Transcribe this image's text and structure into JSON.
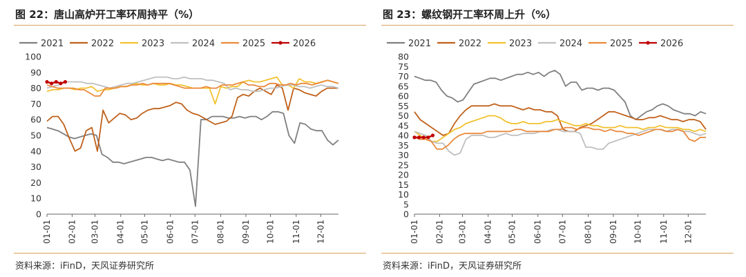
{
  "charts": [
    {
      "id": "c22",
      "figure_title": "图 22：唐山高炉开工率环周持平（%）",
      "source": "资料来源：iFinD，天风证券研究所",
      "chart_data": {
        "type": "line",
        "title": "唐山高炉开工率环周持平（%）",
        "xlabel": "",
        "ylabel": "",
        "ylim": [
          0,
          100
        ],
        "yticks": [
          0,
          10,
          20,
          30,
          40,
          50,
          60,
          70,
          80,
          90,
          100
        ],
        "xlim": [
          1,
          52
        ],
        "xticks": [
          {
            "label": "01-01",
            "week": 1
          },
          {
            "label": "02-01",
            "week": 5.4
          },
          {
            "label": "03-01",
            "week": 9.4
          },
          {
            "label": "04-01",
            "week": 13.9
          },
          {
            "label": "05-01",
            "week": 18.1
          },
          {
            "label": "06-01",
            "week": 22.6
          },
          {
            "label": "07-01",
            "week": 26.9
          },
          {
            "label": "08-01",
            "week": 31.4
          },
          {
            "label": "09-01",
            "week": 35.8
          },
          {
            "label": "10-01",
            "week": 40.1
          },
          {
            "label": "11-01",
            "week": 44.6
          },
          {
            "label": "12-01",
            "week": 48.9
          }
        ],
        "series": [
          {
            "name": "2021",
            "color": "#7f7f7f",
            "values": [
              55,
              54,
              53,
              51,
              49,
              48,
              49,
              50,
              51,
              50,
              38,
              36,
              33,
              33,
              32,
              33,
              34,
              35,
              36,
              36,
              35,
              34,
              35,
              34,
              33,
              33,
              28,
              5,
              60,
              60,
              62,
              62,
              62,
              61,
              61,
              62,
              61,
              62,
              62,
              60,
              62,
              65,
              65,
              64,
              50,
              45,
              58,
              57,
              54,
              53,
              53,
              47,
              44,
              47
            ]
          },
          {
            "name": "2022",
            "color": "#c0601a",
            "values": [
              59,
              62,
              62,
              57,
              48,
              40,
              42,
              53,
              55,
              40,
              66,
              58,
              61,
              64,
              63,
              60,
              61,
              64,
              66,
              67,
              67,
              68,
              69,
              71,
              70,
              66,
              64,
              63,
              61,
              59,
              57,
              58,
              59,
              62,
              74,
              76,
              75,
              78,
              80,
              78,
              76,
              82,
              80,
              66,
              80,
              79,
              77,
              76,
              75,
              78,
              80,
              80,
              80
            ]
          },
          {
            "name": "2023",
            "color": "#f2c12e",
            "values": [
              78,
              79,
              79,
              80,
              80,
              79,
              80,
              80,
              81,
              78,
              79,
              79,
              80,
              81,
              81,
              82,
              83,
              82,
              82,
              83,
              82,
              82,
              83,
              82,
              82,
              81,
              80,
              80,
              80,
              80,
              70,
              81,
              80,
              81,
              81,
              84,
              85,
              84,
              84,
              85,
              86,
              87,
              82,
              82,
              80,
              86,
              84,
              84,
              83,
              84,
              85,
              84,
              83
            ]
          },
          {
            "name": "2024",
            "color": "#bfbfbf",
            "values": [
              80,
              81,
              82,
              84,
              84,
              84,
              84,
              83,
              83,
              82,
              81,
              80,
              81,
              82,
              83,
              83,
              84,
              85,
              86,
              87,
              87,
              87,
              86,
              86,
              87,
              86,
              86,
              86,
              85,
              85,
              84,
              83,
              79,
              80,
              79,
              79,
              78,
              78,
              79,
              80,
              80,
              81,
              82,
              82,
              81,
              81,
              80,
              81,
              82,
              81,
              81,
              80
            ]
          },
          {
            "name": "2025",
            "color": "#e9893b",
            "values": [
              82,
              81,
              80,
              80,
              80,
              80,
              79,
              79,
              77,
              75,
              75,
              80,
              80,
              80,
              81,
              81,
              82,
              82,
              83,
              82,
              83,
              83,
              83,
              83,
              82,
              81,
              80,
              80,
              80,
              80,
              81,
              80,
              80,
              82,
              82,
              82,
              83,
              84,
              82,
              82,
              81,
              81,
              83,
              83,
              82,
              82,
              83,
              82,
              83,
              83,
              82,
              83,
              84,
              85,
              84,
              83
            ]
          },
          {
            "name": "2026",
            "color": "#c00000",
            "marker": true,
            "values": [
              84,
              83,
              84,
              83,
              84
            ]
          }
        ]
      }
    },
    {
      "id": "c23",
      "figure_title": "图 23：螺纹钢开工率环周上升（%）",
      "source": "资料来源：iFinD，天风证券研究所",
      "chart_data": {
        "type": "line",
        "title": "螺纹钢开工率环周上升（%）",
        "xlabel": "",
        "ylabel": "",
        "ylim": [
          0,
          80
        ],
        "yticks": [
          0,
          5,
          10,
          15,
          20,
          25,
          30,
          35,
          40,
          45,
          50,
          55,
          60,
          65,
          70,
          75,
          80
        ],
        "xlim": [
          1,
          52
        ],
        "xticks": [
          {
            "label": "01-01",
            "week": 1
          },
          {
            "label": "02-01",
            "week": 5.4
          },
          {
            "label": "03-01",
            "week": 9.4
          },
          {
            "label": "04-01",
            "week": 13.9
          },
          {
            "label": "05-01",
            "week": 18.1
          },
          {
            "label": "06-01",
            "week": 22.6
          },
          {
            "label": "07-01",
            "week": 26.9
          },
          {
            "label": "08-01",
            "week": 31.4
          },
          {
            "label": "09-01",
            "week": 35.8
          },
          {
            "label": "10-01",
            "week": 40.1
          },
          {
            "label": "11-01",
            "week": 44.6
          },
          {
            "label": "12-01",
            "week": 48.9
          }
        ],
        "series": [
          {
            "name": "2021",
            "color": "#7f7f7f",
            "values": [
              70,
              69,
              68,
              68,
              67,
              63,
              60,
              59,
              57,
              58,
              62,
              66,
              67,
              68,
              69,
              69,
              68,
              69,
              70,
              71,
              71,
              72,
              71,
              72,
              70,
              72,
              73,
              71,
              65,
              67,
              67,
              63,
              64,
              64,
              63,
              64,
              64,
              63,
              60,
              57,
              50,
              48,
              50,
              52,
              53,
              55,
              56,
              55,
              53,
              52,
              51,
              51,
              50,
              52,
              51
            ]
          },
          {
            "name": "2022",
            "color": "#c0601a",
            "values": [
              52,
              48,
              46,
              44,
              42,
              40,
              41,
              46,
              50,
              53,
              55,
              55,
              55,
              55,
              56,
              55,
              55,
              55,
              54,
              53,
              54,
              53,
              53,
              52,
              52,
              50,
              43,
              42,
              42,
              44,
              45,
              46,
              48,
              50,
              52,
              52,
              51,
              50,
              49,
              48,
              48,
              49,
              49,
              50,
              49,
              48,
              48,
              47,
              48,
              48,
              47,
              43
            ]
          },
          {
            "name": "2023",
            "color": "#f2c12e",
            "values": [
              42,
              40,
              38,
              37,
              37,
              39,
              41,
              43,
              44,
              46,
              47,
              48,
              49,
              50,
              50,
              49,
              47,
              46,
              46,
              47,
              46,
              46,
              46,
              47,
              47,
              48,
              47,
              46,
              45,
              45,
              46,
              45,
              45,
              44,
              44,
              44,
              45,
              44,
              44,
              44,
              43,
              44,
              44,
              45,
              44,
              44,
              44,
              43,
              43,
              42,
              43,
              42
            ]
          },
          {
            "name": "2024",
            "color": "#bfbfbf",
            "values": [
              42,
              41,
              40,
              37,
              36,
              36,
              32,
              30,
              31,
              38,
              40,
              40,
              40,
              39,
              39,
              40,
              41,
              40,
              40,
              41,
              41,
              41,
              42,
              42,
              43,
              43,
              42,
              42,
              42,
              41,
              34,
              34,
              33,
              33,
              36,
              37,
              38,
              39,
              40,
              41,
              42,
              43,
              43,
              43,
              42,
              43,
              43,
              42,
              42,
              41,
              40,
              41
            ]
          },
          {
            "name": "2025",
            "color": "#e9893b",
            "values": [
              39,
              38,
              38,
              37,
              33,
              33,
              35,
              38,
              40,
              41,
              41,
              41,
              41,
              42,
              42,
              42,
              42,
              42,
              43,
              43,
              42,
              42,
              42,
              42,
              42,
              43,
              43,
              44,
              44,
              43,
              44,
              44,
              43,
              43,
              42,
              43,
              42,
              42,
              41,
              41,
              40,
              41,
              42,
              43,
              43,
              42,
              42,
              43,
              42,
              38,
              37,
              39,
              39
            ]
          },
          {
            "name": "2026",
            "color": "#c00000",
            "marker": true,
            "values": [
              39,
              39,
              39,
              39,
              40
            ]
          }
        ]
      }
    }
  ]
}
